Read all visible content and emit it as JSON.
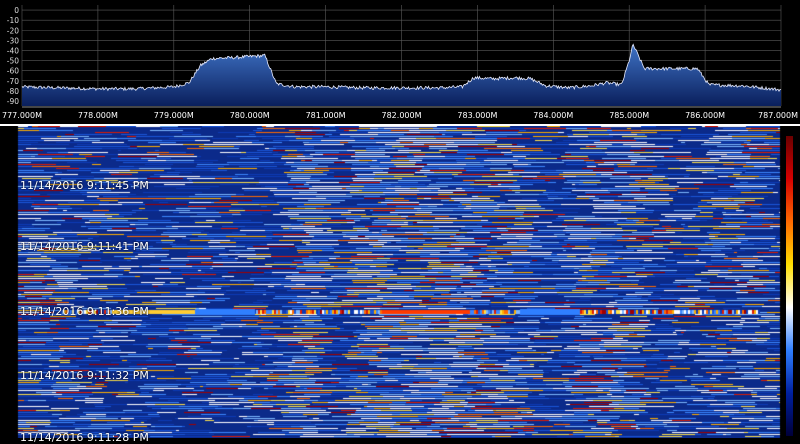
{
  "colors": {
    "background": "#000000",
    "grid": "#5a5a5a",
    "trace": "#e8ecff",
    "fill_top": "#3f73c6",
    "fill_bottom": "#0a1f5c",
    "waterfall_base": "#0b2a8a"
  },
  "spectrum": {
    "y_ticks": [
      "0",
      "-10",
      "-20",
      "-30",
      "-40",
      "-50",
      "-60",
      "-70",
      "-80",
      "-90"
    ],
    "y_range": [
      -95,
      5
    ],
    "x_ticks": [
      "777.000M",
      "778.000M",
      "779.000M",
      "780.000M",
      "781.000M",
      "782.000M",
      "783.000M",
      "784.000M",
      "785.000M",
      "786.000M",
      "787.000M"
    ],
    "x_range_mhz": [
      777.0,
      787.0
    ],
    "noise_floor_db": -77
  },
  "chart_data": {
    "type": "area",
    "x": [
      777.0,
      777.5,
      778.0,
      778.5,
      779.0,
      779.2,
      779.35,
      779.5,
      779.8,
      780.0,
      780.2,
      780.35,
      780.6,
      781.0,
      781.5,
      782.0,
      782.5,
      782.8,
      782.95,
      783.2,
      783.5,
      783.7,
      783.9,
      784.2,
      784.5,
      784.7,
      784.9,
      785.0,
      785.05,
      785.2,
      785.5,
      785.9,
      786.05,
      786.5,
      787.0
    ],
    "y": [
      -76,
      -77,
      -78,
      -78,
      -76,
      -72,
      -55,
      -48,
      -47,
      -46,
      -45,
      -73,
      -76,
      -76,
      -77,
      -77,
      -77,
      -76,
      -67,
      -68,
      -67,
      -68,
      -75,
      -77,
      -75,
      -72,
      -74,
      -50,
      -34,
      -58,
      -58,
      -58,
      -74,
      -75,
      -79
    ],
    "xlabel": "",
    "ylabel": "",
    "ylim": [
      -95,
      5
    ],
    "grid": true,
    "x_tick_labels": [
      "777.000M",
      "778.000M",
      "779.000M",
      "780.000M",
      "781.000M",
      "782.000M",
      "783.000M",
      "784.000M",
      "785.000M",
      "786.000M",
      "787.000M"
    ],
    "y_tick_labels": [
      "0",
      "-10",
      "-20",
      "-30",
      "-40",
      "-50",
      "-60",
      "-70",
      "-80",
      "-90"
    ]
  },
  "waterfall": {
    "timestamps": [
      "11/14/2016 9:11:45 PM",
      "11/14/2016 9:11:41 PM",
      "11/14/2016 9:11:36 PM",
      "11/14/2016 9:11:32 PM",
      "11/14/2016 9:11:28 PM"
    ],
    "colorbar_stops": [
      "#6b0000",
      "#d40000",
      "#ff6a00",
      "#ffe000",
      "#ffffff",
      "#2f7fff",
      "#0020a0",
      "#00003a"
    ]
  }
}
